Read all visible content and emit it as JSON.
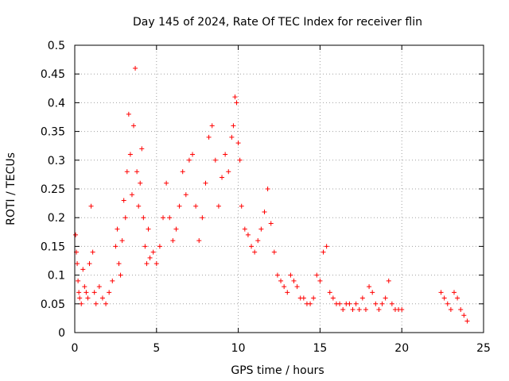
{
  "chart_data": {
    "type": "scatter",
    "title": "Day 145 of 2024, Rate Of TEC Index for receiver flin",
    "xlabel": "GPS time / hours",
    "ylabel": "ROTI / TECUs",
    "xlim": [
      0,
      25
    ],
    "ylim": [
      0,
      0.5
    ],
    "xticks": [
      "0",
      "5",
      "10",
      "15",
      "20",
      "25"
    ],
    "yticks": [
      "0",
      "0.05",
      "0.1",
      "0.15",
      "0.2",
      "0.25",
      "0.3",
      "0.35",
      "0.4",
      "0.45",
      "0.5"
    ],
    "grid": true,
    "marker": "+",
    "color": "#ff0000",
    "series": [
      {
        "x": [
          0.05,
          0.1,
          0.15,
          0.2,
          0.25,
          0.3,
          0.4,
          0.5,
          0.6,
          0.7,
          0.8,
          0.9,
          1.0,
          1.1,
          1.2,
          1.3,
          1.5,
          1.7,
          1.9,
          2.1,
          2.3,
          2.5,
          2.6,
          2.7,
          2.8,
          2.9,
          3.0,
          3.1,
          3.2,
          3.3,
          3.4,
          3.5,
          3.6,
          3.7,
          3.8,
          3.9,
          4.0,
          4.1,
          4.2,
          4.3,
          4.4,
          4.5,
          4.6,
          4.8,
          5.0,
          5.2,
          5.4,
          5.6,
          5.8,
          6.0,
          6.2,
          6.4,
          6.6,
          6.8,
          7.0,
          7.2,
          7.4,
          7.6,
          7.8,
          8.0,
          8.2,
          8.4,
          8.6,
          8.8,
          9.0,
          9.2,
          9.4,
          9.6,
          9.7,
          9.8,
          9.9,
          10.0,
          10.1,
          10.2,
          10.4,
          10.6,
          10.8,
          11.0,
          11.2,
          11.4,
          11.6,
          11.8,
          12.0,
          12.2,
          12.4,
          12.6,
          12.8,
          13.0,
          13.2,
          13.4,
          13.6,
          13.8,
          14.0,
          14.2,
          14.4,
          14.6,
          14.8,
          15.0,
          15.2,
          15.4,
          15.6,
          15.8,
          16.0,
          16.2,
          16.4,
          16.6,
          16.8,
          17.0,
          17.2,
          17.4,
          17.6,
          17.8,
          18.0,
          18.2,
          18.4,
          18.6,
          18.8,
          19.0,
          19.2,
          19.4,
          19.6,
          19.8,
          20.0,
          22.4,
          22.6,
          22.8,
          23.0,
          23.2,
          23.4,
          23.6,
          23.8,
          24.0
        ],
        "y": [
          0.17,
          0.14,
          0.12,
          0.09,
          0.07,
          0.06,
          0.05,
          0.11,
          0.08,
          0.07,
          0.06,
          0.12,
          0.22,
          0.14,
          0.07,
          0.05,
          0.08,
          0.06,
          0.05,
          0.07,
          0.09,
          0.15,
          0.18,
          0.12,
          0.1,
          0.16,
          0.23,
          0.2,
          0.28,
          0.38,
          0.31,
          0.24,
          0.36,
          0.46,
          0.28,
          0.22,
          0.26,
          0.32,
          0.2,
          0.15,
          0.12,
          0.18,
          0.13,
          0.14,
          0.12,
          0.15,
          0.2,
          0.26,
          0.2,
          0.16,
          0.18,
          0.22,
          0.28,
          0.24,
          0.3,
          0.31,
          0.22,
          0.16,
          0.2,
          0.26,
          0.34,
          0.36,
          0.3,
          0.22,
          0.27,
          0.31,
          0.28,
          0.34,
          0.36,
          0.41,
          0.4,
          0.33,
          0.3,
          0.22,
          0.18,
          0.17,
          0.15,
          0.14,
          0.16,
          0.18,
          0.21,
          0.25,
          0.19,
          0.14,
          0.1,
          0.09,
          0.08,
          0.07,
          0.1,
          0.09,
          0.08,
          0.06,
          0.06,
          0.05,
          0.05,
          0.06,
          0.1,
          0.09,
          0.14,
          0.15,
          0.07,
          0.06,
          0.05,
          0.05,
          0.04,
          0.05,
          0.05,
          0.04,
          0.05,
          0.04,
          0.06,
          0.04,
          0.08,
          0.07,
          0.05,
          0.04,
          0.05,
          0.06,
          0.09,
          0.05,
          0.04,
          0.04,
          0.04,
          0.07,
          0.06,
          0.05,
          0.04,
          0.07,
          0.06,
          0.04,
          0.03,
          0.02
        ]
      }
    ]
  }
}
